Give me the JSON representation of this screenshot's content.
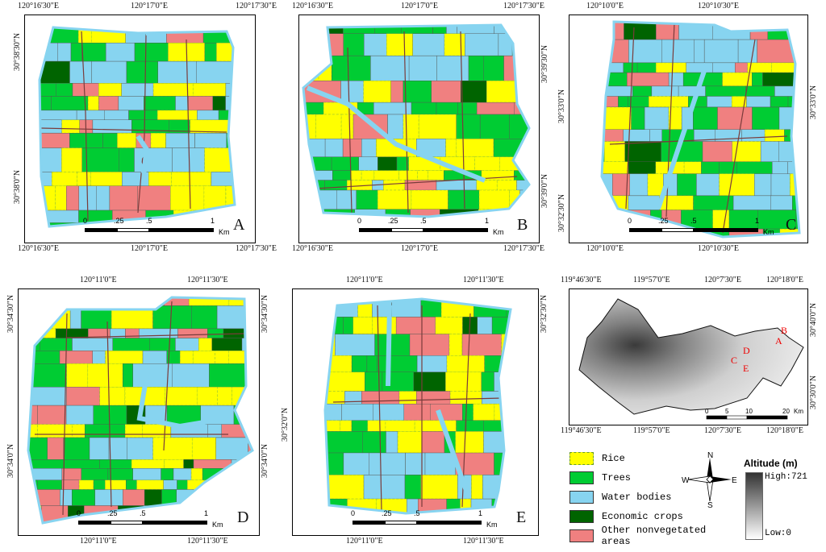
{
  "colors": {
    "rice": "#ffff00",
    "trees": "#00cc33",
    "water": "#87d4f0",
    "economic": "#006400",
    "other": "#f08080"
  },
  "panels": [
    {
      "id": "A",
      "label": "A",
      "top": [
        "120°16'30\"E",
        "120°17'0\"E",
        "120°17'30\"E"
      ],
      "bottom": [
        "120°16'30\"E",
        "120°17'0\"E",
        "120°17'30\"E"
      ],
      "left": [
        "30°38'30\"N",
        "30°38'0\"N"
      ],
      "right": [],
      "scale": [
        "0",
        ".25",
        ".5",
        "1",
        "Km"
      ]
    },
    {
      "id": "B",
      "label": "B",
      "top": [
        "120°16'30\"E",
        "120°17'0\"E",
        "120°17'30\"E"
      ],
      "bottom": [
        "120°16'30\"E",
        "120°17'0\"E",
        "120°17'30\"E"
      ],
      "left": [],
      "right": [
        "30°39'30\"N",
        "30°39'0\"N"
      ],
      "scale": [
        "0",
        ".25",
        ".5",
        "1",
        "Km"
      ]
    },
    {
      "id": "C",
      "label": "C",
      "top": [
        "120°10'0\"E",
        "120°10'30\"E"
      ],
      "bottom": [
        "120°10'0\"E",
        "120°10'30\"E"
      ],
      "left": [
        "30°33'0\"N",
        "30°32'30\"N"
      ],
      "right": [
        "30°33'0\"N"
      ],
      "scale": [
        "0",
        ".25",
        ".5",
        "1",
        "Km"
      ]
    },
    {
      "id": "D",
      "label": "D",
      "top": [
        "120°11'0\"E",
        "120°11'30\"E"
      ],
      "bottom": [
        "120°11'0\"E",
        "120°11'30\"E"
      ],
      "left": [
        "30°34'30\"N",
        "30°34'0\"N"
      ],
      "right": [
        "30°34'30\"N",
        "30°34'0\"N"
      ],
      "scale": [
        "0",
        ".25",
        ".5",
        "1",
        "Km"
      ]
    },
    {
      "id": "E",
      "label": "E",
      "top": [
        "120°11'0\"E",
        "120°11'30\"E"
      ],
      "bottom": [
        "120°11'0\"E",
        "120°11'30\"E"
      ],
      "left": [
        "30°32'0\"N"
      ],
      "right": [
        "30°32'30\"N"
      ],
      "scale": [
        "0",
        ".25",
        ".5",
        "1",
        "Km"
      ]
    }
  ],
  "overview": {
    "top": [
      "119°46'30\"E",
      "119°57'0\"E",
      "120°7'30\"E",
      "120°18'0\"E"
    ],
    "bottom": [
      "119°46'30\"E",
      "119°57'0\"E",
      "120°7'30\"E",
      "120°18'0\"E"
    ],
    "right": [
      "30°40'0\"N",
      "30°30'0\"N"
    ],
    "sites": [
      "B",
      "A",
      "D",
      "C",
      "E"
    ],
    "scale": [
      "0",
      "5",
      "10",
      "20",
      "Km"
    ]
  },
  "legend": {
    "items": [
      {
        "label": "Rice",
        "color": "#ffff00",
        "dashed": true
      },
      {
        "label": "Trees",
        "color": "#00cc33",
        "dashed": false
      },
      {
        "label": "Water bodies",
        "color": "#87d4f0",
        "dashed": false
      },
      {
        "label": "Economic crops",
        "color": "#006400",
        "dashed": false
      },
      {
        "label": "Other nonvegetated areas",
        "color": "#f08080",
        "dashed": false
      }
    ],
    "north": "N",
    "south": "S",
    "west": "W",
    "east": "E",
    "altitude_title": "Altitude (m)",
    "high": "High:721",
    "low": "Low:0"
  }
}
